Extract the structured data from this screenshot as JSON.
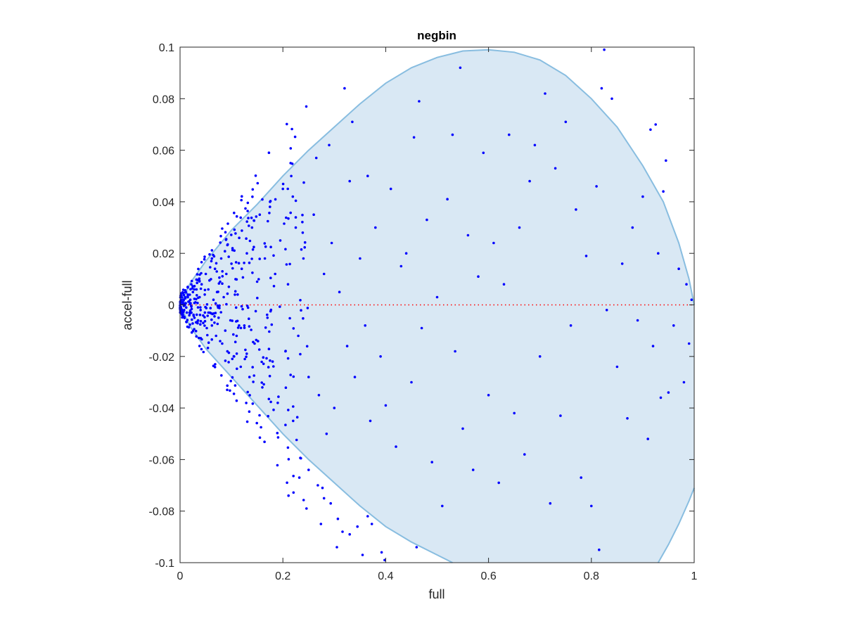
{
  "chart_data": {
    "type": "scatter",
    "title": "negbin",
    "xlabel": "full",
    "ylabel": "accel-full",
    "xlim": [
      0,
      1
    ],
    "ylim": [
      -0.1,
      0.1
    ],
    "xticks": [
      0,
      0.2,
      0.4,
      0.6,
      0.8,
      1
    ],
    "xtick_labels": [
      "0",
      "0.2",
      "0.4",
      "0.6",
      "0.8",
      "1"
    ],
    "yticks": [
      -0.1,
      -0.08,
      -0.06,
      -0.04,
      -0.02,
      0,
      0.02,
      0.04,
      0.06,
      0.08,
      0.1
    ],
    "ytick_labels": [
      "-0.1",
      "-0.08",
      "-0.06",
      "-0.04",
      "-0.02",
      "0",
      "0.02",
      "0.04",
      "0.06",
      "0.08",
      "0.1"
    ],
    "grid": false,
    "reference_line": {
      "y": 0,
      "style": "dotted",
      "color": "#ff0000"
    },
    "region": {
      "fill": "#d9e8f4",
      "stroke": "#88bde0",
      "upper_boundary": [
        [
          0,
          0
        ],
        [
          0.02,
          0.0085
        ],
        [
          0.05,
          0.017
        ],
        [
          0.1,
          0.029
        ],
        [
          0.15,
          0.039
        ],
        [
          0.2,
          0.05
        ],
        [
          0.25,
          0.06
        ],
        [
          0.3,
          0.069
        ],
        [
          0.35,
          0.078
        ],
        [
          0.4,
          0.086
        ],
        [
          0.45,
          0.092
        ],
        [
          0.5,
          0.096
        ],
        [
          0.55,
          0.0985
        ],
        [
          0.6,
          0.099
        ],
        [
          0.65,
          0.098
        ],
        [
          0.7,
          0.095
        ],
        [
          0.75,
          0.089
        ],
        [
          0.8,
          0.08
        ],
        [
          0.85,
          0.069
        ],
        [
          0.9,
          0.054
        ],
        [
          0.94,
          0.04
        ],
        [
          0.97,
          0.024
        ],
        [
          0.99,
          0.01
        ],
        [
          1.0,
          0.0
        ]
      ],
      "lower_boundary": [
        [
          0,
          0
        ],
        [
          0.02,
          -0.0085
        ],
        [
          0.05,
          -0.017
        ],
        [
          0.1,
          -0.028
        ],
        [
          0.15,
          -0.039
        ],
        [
          0.2,
          -0.05
        ],
        [
          0.25,
          -0.06
        ],
        [
          0.3,
          -0.069
        ],
        [
          0.35,
          -0.078
        ],
        [
          0.4,
          -0.086
        ],
        [
          0.45,
          -0.092
        ],
        [
          0.5,
          -0.097
        ],
        [
          0.53,
          -0.1
        ]
      ],
      "bottom_right_boundary": [
        [
          0.93,
          -0.1
        ],
        [
          0.95,
          -0.093
        ],
        [
          0.97,
          -0.085
        ],
        [
          0.99,
          -0.076
        ],
        [
          1.0,
          -0.071
        ]
      ]
    },
    "series": [
      {
        "color": "#0000ff",
        "points": [
          [
            0.005,
            0.001
          ],
          [
            0.008,
            -0.002
          ],
          [
            0.01,
            0.003
          ],
          [
            0.012,
            -0.001
          ],
          [
            0.015,
            0.004
          ],
          [
            0.018,
            -0.004
          ],
          [
            0.02,
            0.002
          ],
          [
            0.022,
            -0.003
          ],
          [
            0.025,
            0.005
          ],
          [
            0.028,
            -0.005
          ],
          [
            0.03,
            0.001
          ],
          [
            0.032,
            0.006
          ],
          [
            0.035,
            -0.006
          ],
          [
            0.038,
            0.003
          ],
          [
            0.04,
            -0.002
          ],
          [
            0.042,
            0.008
          ],
          [
            0.045,
            -0.007
          ],
          [
            0.048,
            0.004
          ],
          [
            0.05,
            0.012
          ],
          [
            0.052,
            -0.009
          ],
          [
            0.055,
            0.006
          ],
          [
            0.058,
            -0.003
          ],
          [
            0.06,
            0.01
          ],
          [
            0.062,
            -0.008
          ],
          [
            0.065,
            0.002
          ],
          [
            0.068,
            0.014
          ],
          [
            0.07,
            -0.012
          ],
          [
            0.072,
            0.005
          ],
          [
            0.075,
            -0.005
          ],
          [
            0.078,
            0.009
          ],
          [
            0.08,
            0.018
          ],
          [
            0.082,
            -0.015
          ],
          [
            0.085,
            0.003
          ],
          [
            0.088,
            -0.01
          ],
          [
            0.09,
            0.012
          ],
          [
            0.092,
            -0.018
          ],
          [
            0.095,
            0.007
          ],
          [
            0.098,
            -0.006
          ],
          [
            0.1,
            0.016
          ],
          [
            0.102,
            0.022
          ],
          [
            0.105,
            -0.02
          ],
          [
            0.108,
            0.01
          ],
          [
            0.11,
            -0.012
          ],
          [
            0.112,
            0.004
          ],
          [
            0.115,
            0.026
          ],
          [
            0.118,
            -0.024
          ],
          [
            0.12,
            0.014
          ],
          [
            0.125,
            -0.008
          ],
          [
            0.13,
            0.02
          ],
          [
            0.135,
            -0.028
          ],
          [
            0.14,
            0.03
          ],
          [
            0.145,
            -0.015
          ],
          [
            0.15,
            0.009
          ],
          [
            0.155,
            0.035
          ],
          [
            0.16,
            -0.032
          ],
          [
            0.165,
            0.018
          ],
          [
            0.17,
            -0.005
          ],
          [
            0.175,
            0.04
          ],
          [
            0.18,
            -0.022
          ],
          [
            0.185,
            0.012
          ],
          [
            0.19,
            -0.038
          ],
          [
            0.195,
            0.025
          ],
          [
            0.2,
            0.045
          ],
          [
            0.205,
            -0.018
          ],
          [
            0.21,
            0.008
          ],
          [
            0.215,
            0.055
          ],
          [
            0.22,
            -0.045
          ],
          [
            0.225,
            0.03
          ],
          [
            0.23,
            -0.012
          ],
          [
            0.24,
            0.018
          ],
          [
            0.25,
            -0.028
          ],
          [
            0.26,
            0.035
          ],
          [
            0.265,
            0.057
          ],
          [
            0.27,
            -0.035
          ],
          [
            0.28,
            0.012
          ],
          [
            0.285,
            -0.05
          ],
          [
            0.29,
            0.062
          ],
          [
            0.295,
            0.024
          ],
          [
            0.3,
            -0.04
          ],
          [
            0.31,
            0.005
          ],
          [
            0.32,
            0.084
          ],
          [
            0.325,
            -0.016
          ],
          [
            0.33,
            0.048
          ],
          [
            0.335,
            0.071
          ],
          [
            0.34,
            -0.028
          ],
          [
            0.35,
            0.018
          ],
          [
            0.36,
            -0.008
          ],
          [
            0.365,
            0.05
          ],
          [
            0.37,
            -0.045
          ],
          [
            0.38,
            0.03
          ],
          [
            0.39,
            -0.02
          ],
          [
            0.4,
            -0.039
          ],
          [
            0.41,
            0.045
          ],
          [
            0.42,
            -0.055
          ],
          [
            0.43,
            0.015
          ],
          [
            0.44,
            0.02
          ],
          [
            0.45,
            -0.03
          ],
          [
            0.455,
            0.065
          ],
          [
            0.46,
            -0.094
          ],
          [
            0.465,
            0.079
          ],
          [
            0.47,
            -0.009
          ],
          [
            0.48,
            0.033
          ],
          [
            0.49,
            -0.061
          ],
          [
            0.5,
            0.003
          ],
          [
            0.51,
            -0.078
          ],
          [
            0.52,
            0.041
          ],
          [
            0.53,
            0.066
          ],
          [
            0.535,
            -0.018
          ],
          [
            0.545,
            0.092
          ],
          [
            0.55,
            -0.048
          ],
          [
            0.56,
            0.027
          ],
          [
            0.57,
            -0.064
          ],
          [
            0.58,
            0.011
          ],
          [
            0.59,
            0.059
          ],
          [
            0.6,
            -0.035
          ],
          [
            0.61,
            0.024
          ],
          [
            0.62,
            -0.069
          ],
          [
            0.63,
            0.008
          ],
          [
            0.64,
            0.066
          ],
          [
            0.65,
            -0.042
          ],
          [
            0.66,
            0.03
          ],
          [
            0.67,
            -0.058
          ],
          [
            0.68,
            0.048
          ],
          [
            0.69,
            0.062
          ],
          [
            0.7,
            -0.02
          ],
          [
            0.71,
            0.082
          ],
          [
            0.72,
            -0.077
          ],
          [
            0.73,
            0.053
          ],
          [
            0.74,
            -0.043
          ],
          [
            0.75,
            0.071
          ],
          [
            0.76,
            -0.008
          ],
          [
            0.77,
            0.037
          ],
          [
            0.78,
            -0.067
          ],
          [
            0.79,
            0.019
          ],
          [
            0.8,
            -0.078
          ],
          [
            0.81,
            0.046
          ],
          [
            0.815,
            -0.095
          ],
          [
            0.82,
            0.084
          ],
          [
            0.825,
            0.099
          ],
          [
            0.83,
            -0.002
          ],
          [
            0.84,
            0.08
          ],
          [
            0.85,
            -0.024
          ],
          [
            0.86,
            0.016
          ],
          [
            0.87,
            -0.044
          ],
          [
            0.88,
            0.03
          ],
          [
            0.89,
            -0.006
          ],
          [
            0.9,
            0.042
          ],
          [
            0.91,
            -0.052
          ],
          [
            0.915,
            0.068
          ],
          [
            0.92,
            -0.016
          ],
          [
            0.925,
            0.07
          ],
          [
            0.93,
            0.02
          ],
          [
            0.935,
            -0.036
          ],
          [
            0.94,
            0.044
          ],
          [
            0.945,
            0.056
          ],
          [
            0.95,
            -0.034
          ],
          [
            0.96,
            -0.008
          ],
          [
            0.97,
            0.014
          ],
          [
            0.98,
            -0.03
          ],
          [
            0.985,
            0.008
          ],
          [
            0.99,
            -0.015
          ],
          [
            0.995,
            0.002
          ],
          [
            0.392,
            -0.096
          ],
          [
            0.398,
            -0.099
          ],
          [
            0.355,
            -0.097
          ],
          [
            0.305,
            -0.094
          ],
          [
            0.316,
            -0.088
          ],
          [
            0.274,
            -0.085
          ],
          [
            0.246,
            -0.079
          ],
          [
            0.211,
            -0.074
          ],
          [
            0.232,
            -0.067
          ],
          [
            0.25,
            -0.064
          ],
          [
            0.268,
            -0.07
          ],
          [
            0.277,
            -0.071
          ],
          [
            0.28,
            -0.075
          ],
          [
            0.293,
            -0.077
          ],
          [
            0.307,
            -0.083
          ],
          [
            0.33,
            -0.089
          ],
          [
            0.345,
            -0.086
          ],
          [
            0.365,
            -0.082
          ],
          [
            0.373,
            -0.085
          ]
        ]
      }
    ]
  }
}
